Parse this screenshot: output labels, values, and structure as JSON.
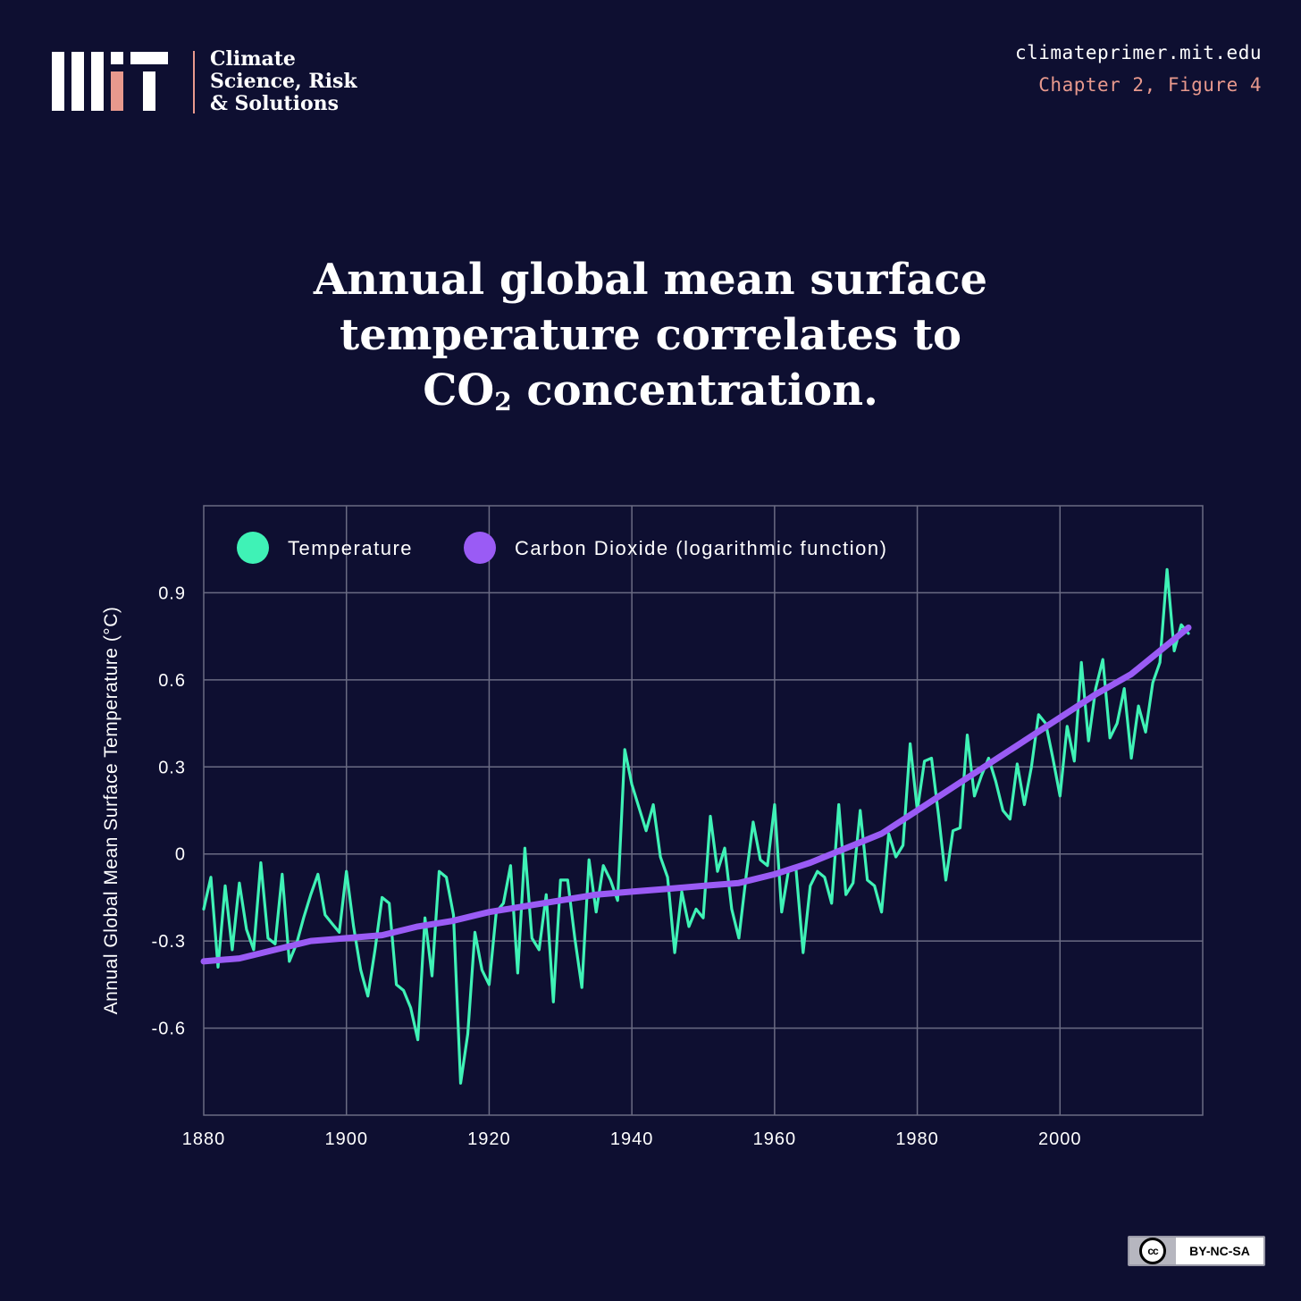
{
  "branding": {
    "org_lines": [
      "Climate",
      "Science, Risk",
      "& Solutions"
    ],
    "site_url": "climateprimer.mit.edu",
    "figure_ref": "Chapter 2, Figure 4",
    "license": "BY-NC-SA",
    "license_badge": "cc"
  },
  "title": {
    "line1": "Annual global mean surface",
    "line2": "temperature correlates to",
    "line3_prefix": "CO",
    "line3_sub": "2",
    "line3_suffix": " concentration."
  },
  "colors": {
    "background": "#0e0f31",
    "grid": "#6a6b83",
    "temperature": "#3ff2b6",
    "co2": "#9a5bf5",
    "accent": "#e8998d",
    "text": "#ffffff"
  },
  "chart_data": {
    "type": "line",
    "xlabel": "",
    "ylabel": "Annual Global Mean Surface Temperature (°C)",
    "xlim": [
      1880,
      2020
    ],
    "ylim": [
      -0.9,
      1.2
    ],
    "xticks": [
      1880,
      1900,
      1920,
      1940,
      1960,
      1980,
      2000
    ],
    "yticks": [
      {
        "value": 0.9,
        "label": "0.9"
      },
      {
        "value": 0.6,
        "label": "0.6"
      },
      {
        "value": 0.3,
        "label": "0.3"
      },
      {
        "value": 0,
        "label": "0"
      },
      {
        "value": -0.3,
        "label": "-0.3"
      },
      {
        "value": -0.6,
        "label": "-0.6"
      }
    ],
    "grid": true,
    "legend_position": "top-left",
    "series": [
      {
        "name": "Temperature",
        "x": [
          1880,
          1881,
          1882,
          1883,
          1884,
          1885,
          1886,
          1887,
          1888,
          1889,
          1890,
          1891,
          1892,
          1893,
          1894,
          1895,
          1896,
          1897,
          1898,
          1899,
          1900,
          1901,
          1902,
          1903,
          1904,
          1905,
          1906,
          1907,
          1908,
          1909,
          1910,
          1911,
          1912,
          1913,
          1914,
          1915,
          1916,
          1917,
          1918,
          1919,
          1920,
          1921,
          1922,
          1923,
          1924,
          1925,
          1926,
          1927,
          1928,
          1929,
          1930,
          1931,
          1932,
          1933,
          1934,
          1935,
          1936,
          1937,
          1938,
          1939,
          1940,
          1941,
          1942,
          1943,
          1944,
          1945,
          1946,
          1947,
          1948,
          1949,
          1950,
          1951,
          1952,
          1953,
          1954,
          1955,
          1956,
          1957,
          1958,
          1959,
          1960,
          1961,
          1962,
          1963,
          1964,
          1965,
          1966,
          1967,
          1968,
          1969,
          1970,
          1971,
          1972,
          1973,
          1974,
          1975,
          1976,
          1977,
          1978,
          1979,
          1980,
          1981,
          1982,
          1983,
          1984,
          1985,
          1986,
          1987,
          1988,
          1989,
          1990,
          1991,
          1992,
          1993,
          1994,
          1995,
          1996,
          1997,
          1998,
          1999,
          2000,
          2001,
          2002,
          2003,
          2004,
          2005,
          2006,
          2007,
          2008,
          2009,
          2010,
          2011,
          2012,
          2013,
          2014,
          2015,
          2016,
          2017,
          2018
        ],
        "values": [
          -0.19,
          -0.08,
          -0.39,
          -0.11,
          -0.33,
          -0.1,
          -0.26,
          -0.33,
          -0.03,
          -0.29,
          -0.31,
          -0.07,
          -0.37,
          -0.31,
          -0.22,
          -0.14,
          -0.07,
          -0.21,
          -0.24,
          -0.27,
          -0.06,
          -0.25,
          -0.4,
          -0.49,
          -0.33,
          -0.15,
          -0.17,
          -0.45,
          -0.47,
          -0.53,
          -0.64,
          -0.22,
          -0.42,
          -0.06,
          -0.08,
          -0.21,
          -0.79,
          -0.62,
          -0.27,
          -0.4,
          -0.45,
          -0.2,
          -0.17,
          -0.04,
          -0.41,
          0.02,
          -0.29,
          -0.33,
          -0.14,
          -0.51,
          -0.09,
          -0.09,
          -0.29,
          -0.46,
          -0.02,
          -0.2,
          -0.04,
          -0.09,
          -0.16,
          0.36,
          0.24,
          0.16,
          0.08,
          0.17,
          -0.01,
          -0.08,
          -0.34,
          -0.13,
          -0.25,
          -0.19,
          -0.22,
          0.13,
          -0.06,
          0.02,
          -0.19,
          -0.29,
          -0.08,
          0.11,
          -0.02,
          -0.04,
          0.17,
          -0.2,
          -0.05,
          -0.05,
          -0.34,
          -0.11,
          -0.06,
          -0.08,
          -0.17,
          0.17,
          -0.14,
          -0.1,
          0.15,
          -0.09,
          -0.11,
          -0.2,
          0.07,
          -0.01,
          0.03,
          0.38,
          0.15,
          0.32,
          0.33,
          0.13,
          -0.09,
          0.08,
          0.09,
          0.41,
          0.2,
          0.27,
          0.33,
          0.25,
          0.15,
          0.12,
          0.31,
          0.17,
          0.3,
          0.48,
          0.45,
          0.33,
          0.2,
          0.44,
          0.32,
          0.66,
          0.39,
          0.57,
          0.67,
          0.4,
          0.45,
          0.57,
          0.33,
          0.51,
          0.42,
          0.59,
          0.66,
          0.98,
          0.7,
          0.79,
          0.76
        ]
      },
      {
        "name": "Carbon Dioxide (logarithmic function)",
        "x": [
          1880,
          1885,
          1890,
          1895,
          1900,
          1905,
          1910,
          1915,
          1920,
          1925,
          1930,
          1935,
          1940,
          1945,
          1950,
          1955,
          1960,
          1965,
          1970,
          1975,
          1980,
          1985,
          1990,
          1995,
          2000,
          2005,
          2010,
          2015,
          2018
        ],
        "values": [
          -0.37,
          -0.36,
          -0.33,
          -0.3,
          -0.29,
          -0.28,
          -0.25,
          -0.23,
          -0.2,
          -0.18,
          -0.16,
          -0.14,
          -0.13,
          -0.12,
          -0.11,
          -0.1,
          -0.07,
          -0.03,
          0.02,
          0.07,
          0.15,
          0.23,
          0.31,
          0.39,
          0.47,
          0.55,
          0.62,
          0.72,
          0.78
        ]
      }
    ]
  }
}
